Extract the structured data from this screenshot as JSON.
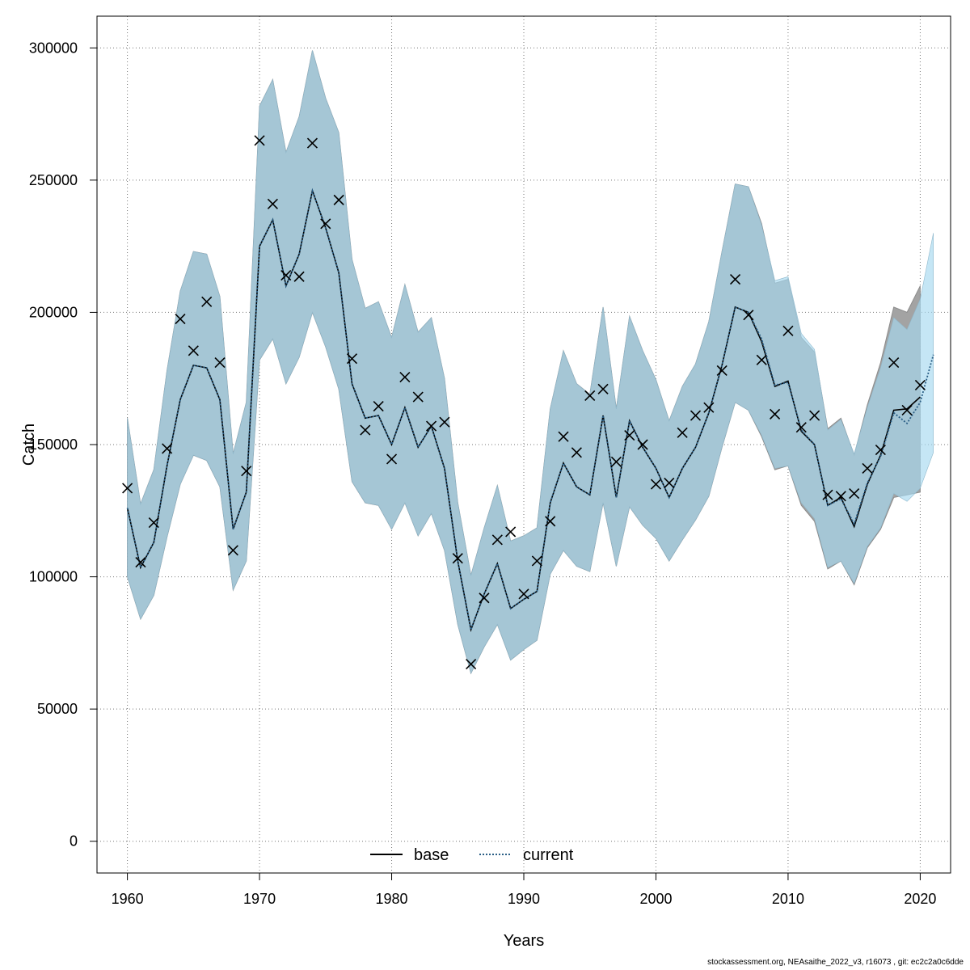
{
  "chart_data": {
    "type": "line",
    "xlabel": "Years",
    "ylabel": "Catch",
    "xlim": [
      1957.7,
      2022.3
    ],
    "ylim": [
      -12000,
      312000
    ],
    "x_ticks": [
      1960,
      1970,
      1980,
      1990,
      2000,
      2010,
      2020
    ],
    "y_ticks": [
      0,
      50000,
      100000,
      150000,
      200000,
      250000,
      300000
    ],
    "grid": true,
    "legend_position": "bottom-center",
    "colors": {
      "base_band": "#a3a3a3",
      "current_band": "#a6d8f0",
      "overlap_band": "#a1c3d4",
      "base_line": "#000000",
      "current_line": "#2b5f86",
      "observed": "#000000",
      "grid": "#777777"
    },
    "x": [
      1960,
      1961,
      1962,
      1963,
      1964,
      1965,
      1966,
      1967,
      1968,
      1969,
      1970,
      1971,
      1972,
      1973,
      1974,
      1975,
      1976,
      1977,
      1978,
      1979,
      1980,
      1981,
      1982,
      1983,
      1984,
      1985,
      1986,
      1987,
      1988,
      1989,
      1990,
      1991,
      1992,
      1993,
      1994,
      1995,
      1996,
      1997,
      1998,
      1999,
      2000,
      2001,
      2002,
      2003,
      2004,
      2005,
      2006,
      2007,
      2008,
      2009,
      2010,
      2011,
      2012,
      2013,
      2014,
      2015,
      2016,
      2017,
      2018,
      2019,
      2020,
      2021
    ],
    "series": [
      {
        "name": "base",
        "style": "solid",
        "values": [
          126000,
          103500,
          113000,
          142000,
          167000,
          180000,
          179000,
          167000,
          118000,
          132000,
          225000,
          235000,
          210000,
          222000,
          246000,
          232000,
          215000,
          173000,
          160000,
          161000,
          150000,
          164000,
          149000,
          157000,
          141000,
          106000,
          80000,
          93500,
          105000,
          88000,
          91500,
          94500,
          128000,
          143000,
          134000,
          131000,
          161000,
          130000,
          159000,
          149000,
          141000,
          130000,
          141000,
          149000,
          162000,
          180000,
          202000,
          200000,
          189000,
          172000,
          174000,
          155000,
          150000,
          127000,
          130000,
          119000,
          135000,
          146000,
          163000,
          163500,
          168000,
          null
        ],
        "lower": [
          100000,
          84000,
          93000,
          115000,
          135000,
          146000,
          144000,
          134000,
          95000,
          106000,
          182000,
          190000,
          173000,
          183000,
          200000,
          187000,
          171000,
          136000,
          128000,
          127000,
          118000,
          128000,
          115500,
          124000,
          110000,
          82000,
          63500,
          73500,
          82000,
          68500,
          72500,
          76000,
          101000,
          110000,
          104000,
          102000,
          128000,
          104000,
          126500,
          119500,
          114500,
          106000,
          114000,
          121500,
          130500,
          149000,
          166000,
          163000,
          153000,
          140500,
          142000,
          127000,
          121000,
          103000,
          106000,
          97000,
          111000,
          118000,
          130000,
          131000,
          132000,
          null
        ],
        "upper": [
          160000,
          127500,
          140500,
          178000,
          208000,
          223000,
          222000,
          206000,
          146500,
          166000,
          278000,
          288000,
          260500,
          274000,
          299000,
          281000,
          268000,
          220000,
          201500,
          204000,
          190500,
          210500,
          192500,
          198000,
          175000,
          128000,
          100500,
          118500,
          134500,
          113500,
          115500,
          118500,
          163500,
          185500,
          173000,
          169000,
          202000,
          163500,
          198500,
          185500,
          174500,
          159000,
          172000,
          180500,
          196500,
          223000,
          248500,
          247500,
          233500,
          211000,
          212500,
          190500,
          185000,
          156000,
          160000,
          146000,
          165000,
          181000,
          202000,
          200000,
          210000,
          null
        ]
      },
      {
        "name": "current",
        "style": "dotted",
        "values": [
          126000,
          103500,
          113000,
          142000,
          167000,
          180000,
          179000,
          167000,
          118000,
          132000,
          225000,
          235000,
          210000,
          222000,
          246000,
          232000,
          215000,
          173000,
          160000,
          161000,
          150000,
          164000,
          149000,
          157000,
          141000,
          106000,
          80000,
          93500,
          105000,
          88000,
          91500,
          94500,
          128000,
          143000,
          134000,
          131000,
          161000,
          130000,
          159000,
          149000,
          141000,
          130000,
          141000,
          149000,
          162000,
          180000,
          202000,
          200000,
          190000,
          172500,
          173500,
          155500,
          150000,
          127000,
          129500,
          120000,
          135500,
          145500,
          162000,
          158000,
          166000,
          184000
        ],
        "lower": [
          100000,
          84000,
          93000,
          115000,
          135000,
          146000,
          144000,
          134000,
          95000,
          106000,
          182000,
          190000,
          173000,
          183000,
          200000,
          187000,
          171000,
          136000,
          128000,
          127000,
          118000,
          128000,
          115500,
          124000,
          110000,
          82000,
          63500,
          73500,
          82000,
          68500,
          72500,
          76000,
          101000,
          110000,
          104000,
          102000,
          128000,
          104000,
          126500,
          119500,
          114500,
          106000,
          114000,
          121500,
          130500,
          149000,
          166000,
          163000,
          153500,
          141000,
          142000,
          128000,
          122000,
          103500,
          106000,
          97500,
          111500,
          118500,
          131500,
          128500,
          133500,
          147000
        ],
        "upper": [
          160000,
          127500,
          140500,
          178000,
          208000,
          223000,
          222000,
          206000,
          146500,
          166000,
          278000,
          288000,
          260500,
          274000,
          299000,
          281000,
          268000,
          220000,
          201500,
          204000,
          190500,
          210500,
          192500,
          198000,
          175000,
          128000,
          100500,
          118500,
          134500,
          113500,
          115500,
          118500,
          163500,
          185500,
          173000,
          169000,
          202000,
          163500,
          198500,
          185500,
          174500,
          159000,
          172000,
          180500,
          196500,
          223000,
          248500,
          247500,
          233000,
          212000,
          213500,
          192000,
          186000,
          155500,
          159500,
          146500,
          164000,
          179000,
          198000,
          193500,
          205000,
          230000
        ]
      }
    ],
    "observed": [
      133500,
      105500,
      120500,
      148500,
      197500,
      185500,
      204000,
      181000,
      110000,
      140000,
      265000,
      241000,
      214000,
      213500,
      264000,
      233500,
      242500,
      182500,
      155500,
      164500,
      144500,
      175500,
      168000,
      157000,
      158500,
      107000,
      67000,
      92000,
      114000,
      117000,
      93500,
      106000,
      121000,
      153000,
      147000,
      168500,
      171000,
      143500,
      153500,
      150000,
      135000,
      135500,
      154500,
      161000,
      164000,
      178000,
      212500,
      199000,
      182000,
      161500,
      193000,
      156500,
      161000,
      131000,
      130500,
      131500,
      141000,
      148000,
      181000,
      163000,
      172500,
      null
    ]
  },
  "legend": {
    "items": [
      {
        "label": "base"
      },
      {
        "label": "current"
      }
    ]
  },
  "footer": {
    "text": "stockassessment.org, NEAsaithe_2022_v3, r16073 , git: ec2c2a0c6dde"
  }
}
